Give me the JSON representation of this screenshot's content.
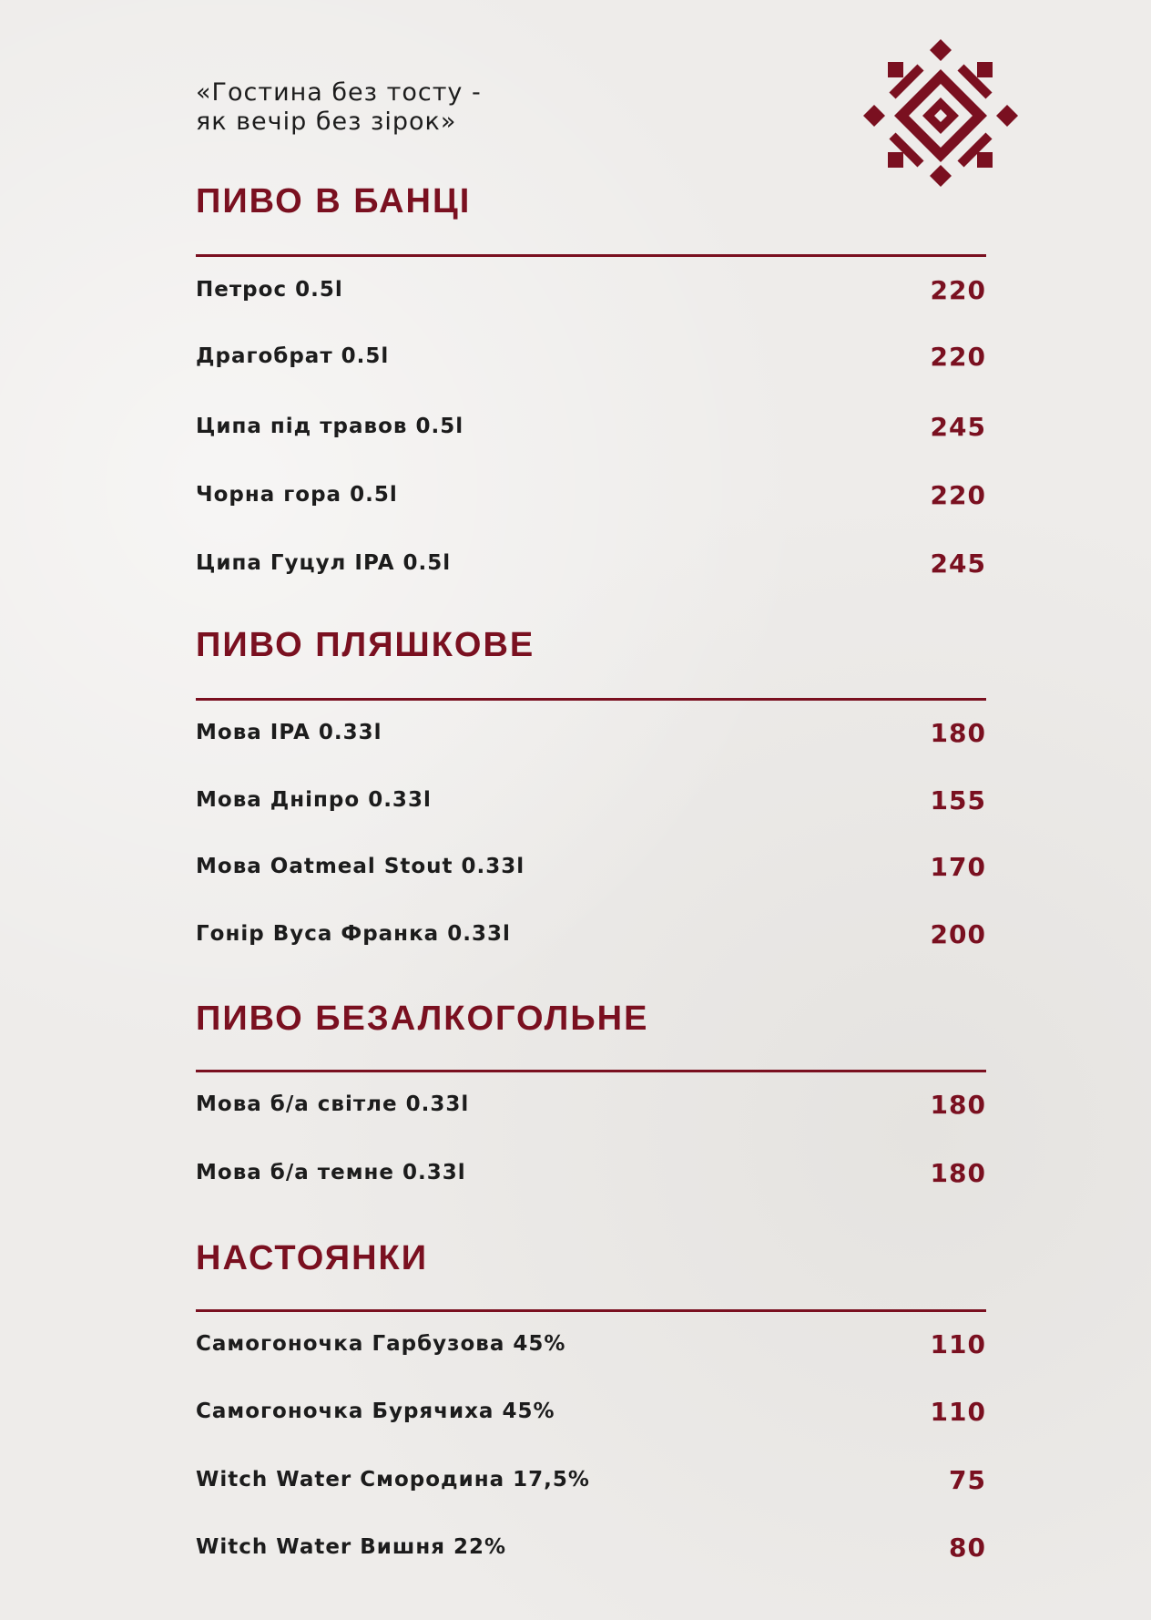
{
  "quote": {
    "line1": "«Гостина без тосту -",
    "line2": "як вечір без зірок»"
  },
  "colors": {
    "accent": "#7a1020",
    "text": "#1c1c1c"
  },
  "logo": "ukrainian-ornament-icon",
  "sections": [
    {
      "title": "ПИВО В БАНЦІ",
      "items": [
        {
          "name": "Петрос 0.5l",
          "price": "220"
        },
        {
          "name": "Драгобрат 0.5l",
          "price": "220"
        },
        {
          "name": "Ципа під травов 0.5l",
          "price": "245"
        },
        {
          "name": "Чорна гора 0.5l",
          "price": "220"
        },
        {
          "name": "Ципа Гуцул IPA 0.5l",
          "price": "245"
        }
      ]
    },
    {
      "title": "ПИВО ПЛЯШКОВЕ",
      "items": [
        {
          "name": "Мова IPA 0.33l",
          "price": "180"
        },
        {
          "name": "Мова Дніпро 0.33l",
          "price": "155"
        },
        {
          "name": "Мова Oatmeal Stout 0.33l",
          "price": "170"
        },
        {
          "name": "Гонір Вуса Франка 0.33l",
          "price": "200"
        }
      ]
    },
    {
      "title": "ПИВО БЕЗАЛКОГОЛЬНЕ",
      "items": [
        {
          "name": "Мова б/а світле 0.33l",
          "price": "180"
        },
        {
          "name": "Мова б/а темне 0.33l",
          "price": "180"
        }
      ]
    },
    {
      "title": "НАСТОЯНКИ",
      "items": [
        {
          "name": "Самогоночка Гарбузова 45%",
          "price": "110"
        },
        {
          "name": "Самогоночка Бурячиха 45%",
          "price": "110"
        },
        {
          "name": "Witch Water Смородина 17,5%",
          "price": "75"
        },
        {
          "name": "Witch Water Вишня 22%",
          "price": "80"
        }
      ]
    }
  ]
}
